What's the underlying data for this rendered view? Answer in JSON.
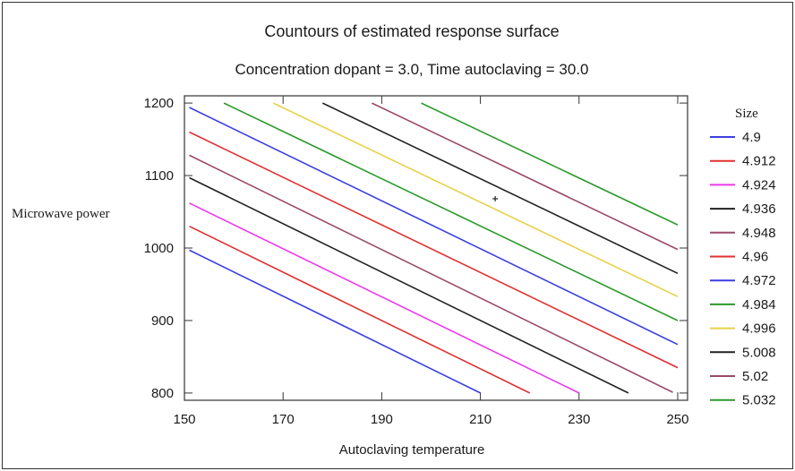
{
  "chart_data": {
    "type": "contour",
    "title": "Countours of estimated response surface",
    "subtitle": "Concentration dopant = 3.0, Time autoclaving = 30.0",
    "xlabel": "Autoclaving temperature",
    "ylabel": "Microwave power",
    "legend_title": "Size",
    "legend_position": "right",
    "xlim": [
      150,
      252
    ],
    "ylim": [
      790,
      1210
    ],
    "xticks": [
      150,
      170,
      190,
      210,
      230,
      250
    ],
    "yticks": [
      800,
      900,
      1000,
      1100,
      1200
    ],
    "xtick_labels": [
      "150",
      "170",
      "190",
      "210",
      "230",
      "250"
    ],
    "ytick_labels": [
      "800",
      "900",
      "1000",
      "1100",
      "1200"
    ],
    "marker_point": {
      "x": 213,
      "y": 1068
    },
    "series": [
      {
        "name": "4.9",
        "label": "4.9",
        "color": "#3a3fe0",
        "points": [
          [
            151,
            997
          ],
          [
            210,
            800
          ]
        ]
      },
      {
        "name": "4.912",
        "label": "4.912",
        "color": "#e03030",
        "points": [
          [
            151,
            1030
          ],
          [
            220,
            800
          ]
        ]
      },
      {
        "name": "4.924",
        "label": "4.924",
        "color": "#ee38ee",
        "points": [
          [
            151,
            1062
          ],
          [
            230,
            800
          ]
        ]
      },
      {
        "name": "4.936",
        "label": "4.936",
        "color": "#222222",
        "points": [
          [
            151,
            1097
          ],
          [
            240,
            800
          ]
        ]
      },
      {
        "name": "4.948",
        "label": "4.948",
        "color": "#9a4a6a",
        "points": [
          [
            151,
            1128
          ],
          [
            249,
            801
          ]
        ]
      },
      {
        "name": "4.96",
        "label": "4.96",
        "color": "#e03030",
        "points": [
          [
            151,
            1160
          ],
          [
            250,
            835
          ]
        ]
      },
      {
        "name": "4.972",
        "label": "4.972",
        "color": "#3a3fe0",
        "points": [
          [
            151,
            1194
          ],
          [
            250,
            867
          ]
        ]
      },
      {
        "name": "4.984",
        "label": "4.984",
        "color": "#2c9a2c",
        "points": [
          [
            158,
            1200
          ],
          [
            250,
            900
          ]
        ]
      },
      {
        "name": "4.996",
        "label": "4.996",
        "color": "#e8d048",
        "points": [
          [
            168,
            1200
          ],
          [
            250,
            933
          ]
        ]
      },
      {
        "name": "5.008",
        "label": "5.008",
        "color": "#222222",
        "points": [
          [
            178,
            1200
          ],
          [
            250,
            965
          ]
        ]
      },
      {
        "name": "5.02",
        "label": "5.02",
        "color": "#9a4a6a",
        "points": [
          [
            188,
            1200
          ],
          [
            250,
            998
          ]
        ]
      },
      {
        "name": "5.032",
        "label": "5.032",
        "color": "#2c9a2c",
        "points": [
          [
            198,
            1200
          ],
          [
            250,
            1032
          ]
        ]
      }
    ]
  }
}
